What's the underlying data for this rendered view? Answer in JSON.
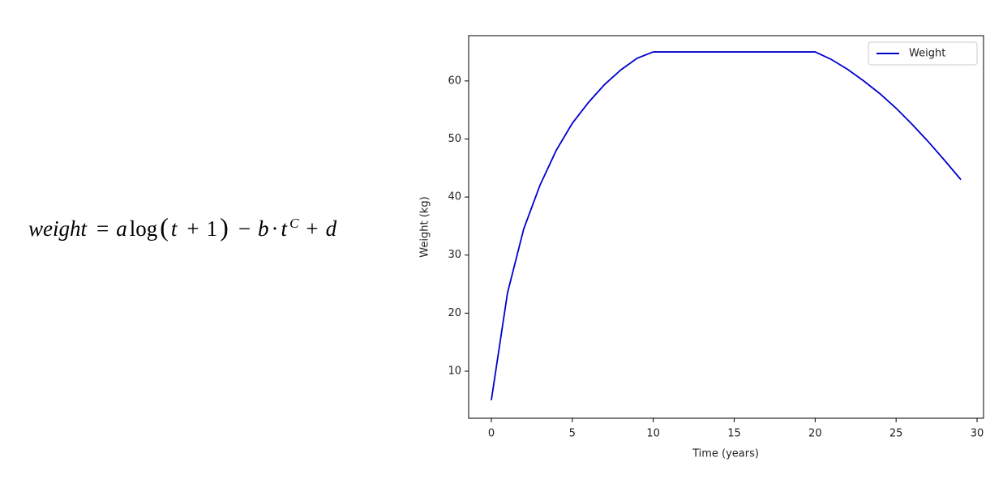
{
  "formula": {
    "parts": [
      "weight",
      "=",
      "a",
      "log",
      "(",
      "t",
      "+",
      "1",
      ")",
      "−",
      "b",
      "·",
      "t",
      "C",
      "+",
      "d"
    ]
  },
  "chart_data": {
    "type": "line",
    "x_label": "Time (years)",
    "y_label": "Weight (kg)",
    "x": [
      0,
      1,
      2,
      3,
      4,
      5,
      6,
      7,
      8,
      9,
      10,
      11,
      12,
      13,
      14,
      15,
      16,
      17,
      18,
      19,
      20,
      21,
      22,
      23,
      24,
      25,
      26,
      27,
      28,
      29
    ],
    "series": [
      {
        "name": "Weight",
        "color": "#0000cc",
        "values": [
          5,
          23.5,
          34.5,
          42,
          48,
          52.7,
          56.3,
          59.4,
          61.9,
          63.9,
          65,
          65,
          65,
          65,
          65,
          65,
          65,
          65,
          65,
          65,
          65,
          63.7,
          62,
          60,
          57.8,
          55.3,
          52.5,
          49.5,
          46.3,
          43
        ]
      }
    ],
    "xlim": [
      -1.4,
      30.4
    ],
    "ylim": [
      1.9,
      67.8
    ],
    "xticks": [
      0,
      5,
      10,
      15,
      20,
      25,
      30
    ],
    "yticks": [
      10,
      20,
      30,
      40,
      50,
      60
    ],
    "legend": "upper right",
    "grid": false
  }
}
